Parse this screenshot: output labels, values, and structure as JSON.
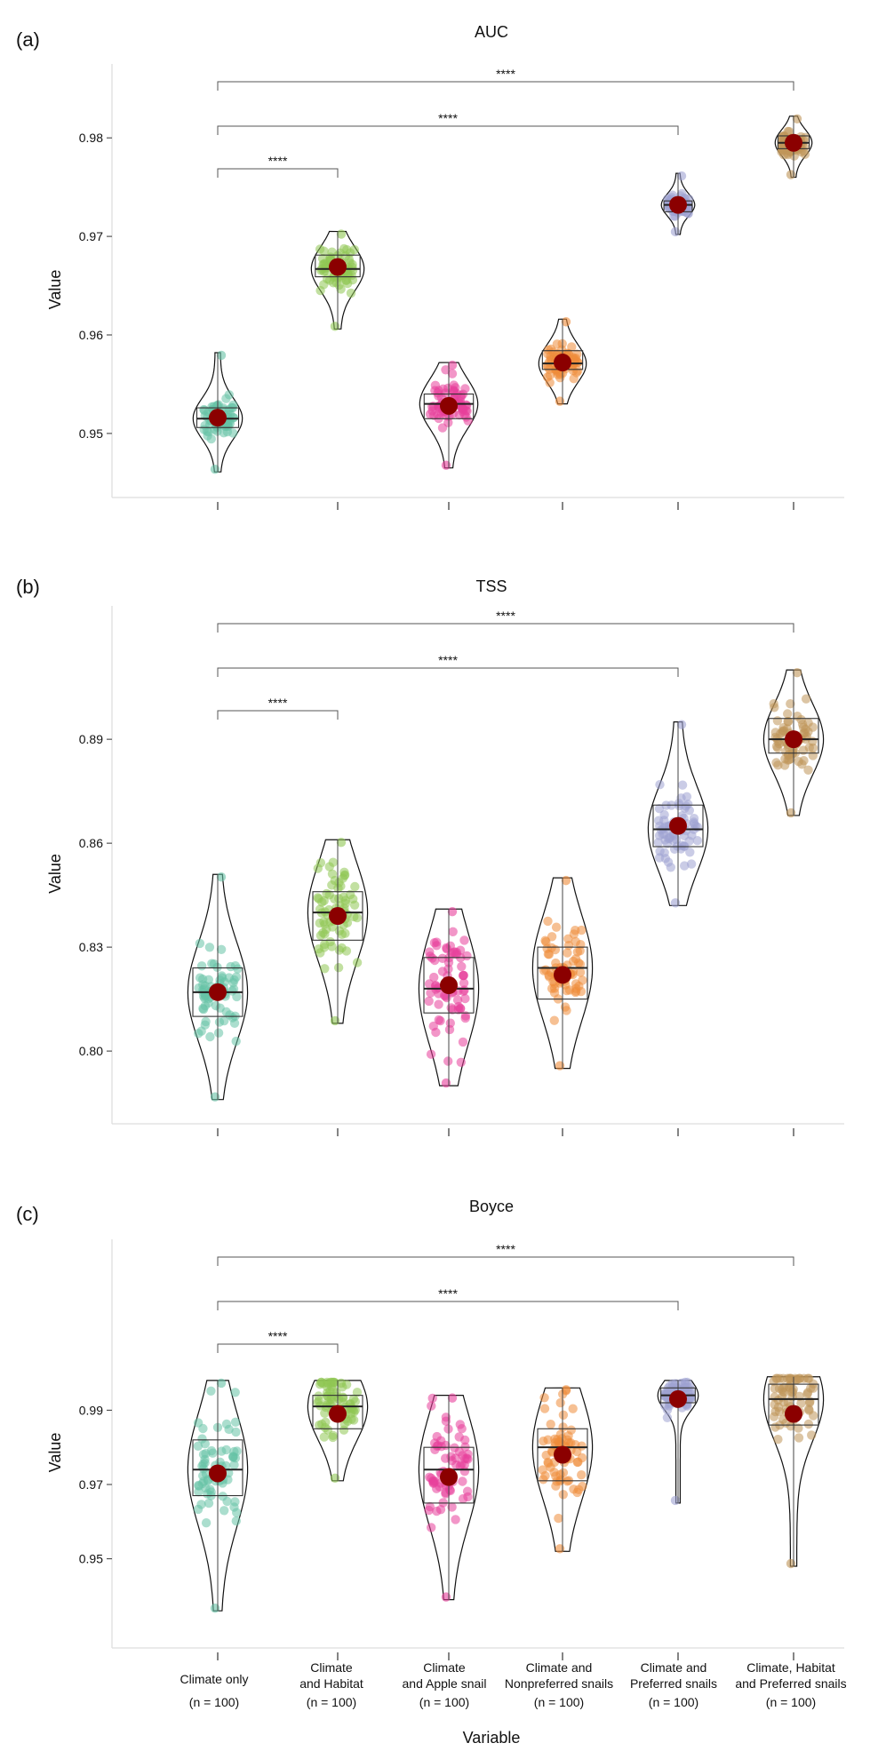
{
  "figure": {
    "xlabel": "Variable",
    "categories": [
      {
        "line1": "Climate only",
        "line2": "",
        "n": "(n = 100)"
      },
      {
        "line1": "Climate",
        "line2": "and Habitat",
        "n": "(n = 100)"
      },
      {
        "line1": "Climate",
        "line2": "and Apple snail",
        "n": "(n = 100)"
      },
      {
        "line1": "Climate and",
        "line2": "Nonpreferred snails",
        "n": "(n = 100)"
      },
      {
        "line1": "Climate and",
        "line2": "Preferred snails",
        "n": "(n = 100)"
      },
      {
        "line1": "Climate, Habitat",
        "line2": "and Preferred snails",
        "n": "(n = 100)"
      }
    ],
    "colors": [
      "#66c2a5",
      "#8fc653",
      "#e7409b",
      "#ef8c3a",
      "#9fa2d2",
      "#c0965a"
    ],
    "mean_color": "#8b0000"
  },
  "chart_data": [
    {
      "type": "violin",
      "panel": "(a)",
      "title": "AUC",
      "ylabel": "Value",
      "ylim": [
        0.9435,
        0.9875
      ],
      "yticks": [
        0.95,
        0.96,
        0.97,
        0.98
      ],
      "ytick_labels": [
        "0.95",
        "0.96",
        "0.97",
        "0.98"
      ],
      "series": [
        {
          "name": "Climate only",
          "mean": 0.9516,
          "median": 0.9515,
          "q1": 0.9506,
          "q3": 0.9526,
          "min": 0.9461,
          "max": 0.9582
        },
        {
          "name": "Climate and Habitat",
          "mean": 0.9669,
          "median": 0.9667,
          "q1": 0.9659,
          "q3": 0.9681,
          "min": 0.9606,
          "max": 0.9705
        },
        {
          "name": "Climate and Apple snail",
          "mean": 0.9528,
          "median": 0.953,
          "q1": 0.9515,
          "q3": 0.954,
          "min": 0.9465,
          "max": 0.9572
        },
        {
          "name": "Climate and Nonpreferred snails",
          "mean": 0.9572,
          "median": 0.9571,
          "q1": 0.9565,
          "q3": 0.9584,
          "min": 0.953,
          "max": 0.9616
        },
        {
          "name": "Climate and Preferred snails",
          "mean": 0.9732,
          "median": 0.9732,
          "q1": 0.9725,
          "q3": 0.9736,
          "min": 0.9702,
          "max": 0.9764
        },
        {
          "name": "Climate, Habitat and Preferred snails",
          "mean": 0.9795,
          "median": 0.9795,
          "q1": 0.9789,
          "q3": 0.9802,
          "min": 0.976,
          "max": 0.9822
        }
      ],
      "significance": [
        {
          "from": 0,
          "to": 1,
          "label": "****"
        },
        {
          "from": 0,
          "to": 4,
          "label": "****"
        },
        {
          "from": 0,
          "to": 5,
          "label": "****"
        }
      ]
    },
    {
      "type": "violin",
      "panel": "(b)",
      "title": "TSS",
      "ylabel": "Value",
      "ylim": [
        0.779,
        0.9285
      ],
      "yticks": [
        0.8,
        0.83,
        0.86,
        0.89
      ],
      "ytick_labels": [
        "0.80",
        "0.83",
        "0.86",
        "0.89"
      ],
      "series": [
        {
          "name": "Climate only",
          "mean": 0.817,
          "median": 0.817,
          "q1": 0.81,
          "q3": 0.824,
          "min": 0.786,
          "max": 0.851
        },
        {
          "name": "Climate and Habitat",
          "mean": 0.839,
          "median": 0.84,
          "q1": 0.832,
          "q3": 0.846,
          "min": 0.808,
          "max": 0.861
        },
        {
          "name": "Climate and Apple snail",
          "mean": 0.819,
          "median": 0.818,
          "q1": 0.811,
          "q3": 0.827,
          "min": 0.79,
          "max": 0.841
        },
        {
          "name": "Climate and Nonpreferred snails",
          "mean": 0.822,
          "median": 0.824,
          "q1": 0.815,
          "q3": 0.83,
          "min": 0.795,
          "max": 0.85
        },
        {
          "name": "Climate and Preferred snails",
          "mean": 0.865,
          "median": 0.864,
          "q1": 0.859,
          "q3": 0.871,
          "min": 0.842,
          "max": 0.895
        },
        {
          "name": "Climate, Habitat and Preferred snails",
          "mean": 0.89,
          "median": 0.89,
          "q1": 0.886,
          "q3": 0.896,
          "min": 0.868,
          "max": 0.91
        }
      ],
      "significance": [
        {
          "from": 0,
          "to": 1,
          "label": "****"
        },
        {
          "from": 0,
          "to": 4,
          "label": "****"
        },
        {
          "from": 0,
          "to": 5,
          "label": "****"
        }
      ]
    },
    {
      "type": "violin",
      "panel": "(c)",
      "title": "Boyce",
      "ylabel": "Value",
      "ylim": [
        0.926,
        1.036
      ],
      "yticks": [
        0.95,
        0.97,
        0.99
      ],
      "ytick_labels": [
        "0.95",
        "0.97",
        "0.99"
      ],
      "series": [
        {
          "name": "Climate only",
          "mean": 0.973,
          "median": 0.974,
          "q1": 0.967,
          "q3": 0.982,
          "min": 0.936,
          "max": 0.998
        },
        {
          "name": "Climate and Habitat",
          "mean": 0.989,
          "median": 0.991,
          "q1": 0.985,
          "q3": 0.994,
          "min": 0.971,
          "max": 0.998
        },
        {
          "name": "Climate and Apple snail",
          "mean": 0.972,
          "median": 0.974,
          "q1": 0.965,
          "q3": 0.98,
          "min": 0.939,
          "max": 0.994
        },
        {
          "name": "Climate and Nonpreferred snails",
          "mean": 0.978,
          "median": 0.98,
          "q1": 0.971,
          "q3": 0.985,
          "min": 0.952,
          "max": 0.996
        },
        {
          "name": "Climate and Preferred snails",
          "mean": 0.993,
          "median": 0.994,
          "q1": 0.992,
          "q3": 0.996,
          "min": 0.965,
          "max": 0.998
        },
        {
          "name": "Climate, Habitat and Preferred snails",
          "mean": 0.989,
          "median": 0.993,
          "q1": 0.986,
          "q3": 0.997,
          "min": 0.948,
          "max": 0.999
        }
      ],
      "significance": [
        {
          "from": 0,
          "to": 1,
          "label": "****"
        },
        {
          "from": 0,
          "to": 4,
          "label": "****"
        },
        {
          "from": 0,
          "to": 5,
          "label": "****"
        }
      ]
    }
  ]
}
